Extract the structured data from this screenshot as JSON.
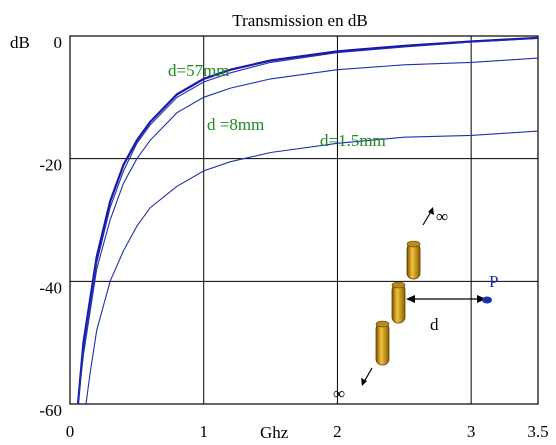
{
  "chart_data": {
    "type": "line",
    "title": "Transmission en dB",
    "ylabel": "dB",
    "xlabel": "Ghz",
    "xlim": [
      0,
      3.5
    ],
    "ylim": [
      -60,
      0
    ],
    "grid": true,
    "x_ticks": [
      {
        "value": 0,
        "label": "0"
      },
      {
        "value": 1,
        "label": "1"
      },
      {
        "value": 2,
        "label": "2"
      },
      {
        "value": 3,
        "label": "3"
      },
      {
        "value": 3.5,
        "label": "3.5"
      }
    ],
    "y_ticks": [
      {
        "value": 0,
        "label": "0"
      },
      {
        "value": -20,
        "label": "-20"
      },
      {
        "value": -40,
        "label": "-40"
      },
      {
        "value": -60,
        "label": "-60"
      }
    ],
    "series": [
      {
        "x": [
          0.06,
          0.1,
          0.2,
          0.3,
          0.4,
          0.5,
          0.6,
          0.8,
          1.0,
          1.2,
          1.5,
          2.0,
          2.5,
          3.0,
          3.5
        ],
        "y": [
          -60,
          -50,
          -36,
          -27,
          -21,
          -17,
          -14,
          -9.5,
          -7,
          -5.5,
          -4,
          -2.5,
          -1.6,
          -0.9,
          -0.3
        ]
      },
      {
        "x": [
          0.06,
          0.1,
          0.2,
          0.3,
          0.4,
          0.5,
          0.6,
          0.8,
          1.0,
          1.2,
          1.5,
          2.0,
          2.5,
          3.0,
          3.5
        ],
        "y": [
          -60,
          -51,
          -37,
          -28,
          -22,
          -17.5,
          -14.5,
          -10,
          -7.5,
          -6,
          -4.3,
          -2.7,
          -1.8,
          -1.0,
          -0.4
        ]
      },
      {
        "x": [
          0.06,
          0.1,
          0.2,
          0.3,
          0.4,
          0.5,
          0.6,
          0.8,
          1.0,
          1.2,
          1.5,
          2.0,
          2.5,
          3.0,
          3.5
        ],
        "y": [
          -60,
          -52,
          -38,
          -30,
          -24,
          -20,
          -17,
          -12.5,
          -10,
          -8.5,
          -7,
          -5.5,
          -4.7,
          -4.3,
          -3.6
        ]
      },
      {
        "x": [
          0.12,
          0.15,
          0.2,
          0.3,
          0.4,
          0.5,
          0.6,
          0.8,
          1.0,
          1.2,
          1.5,
          2.0,
          2.5,
          3.0,
          3.5
        ],
        "y": [
          -60,
          -55,
          -48,
          -40,
          -35,
          -31,
          -28,
          -24.5,
          -22,
          -20.5,
          -19,
          -17.5,
          -16.5,
          -16.2,
          -15.5
        ]
      }
    ],
    "annotations": [
      {
        "text": "d=57mm"
      },
      {
        "text": "d =8mm"
      },
      {
        "text": "d=1.5mm"
      }
    ],
    "inset": {
      "infinity_top": "∞",
      "infinity_bottom": "∞",
      "point_label": "P",
      "distance_label": "d"
    },
    "colors": {
      "curve": "#1f2fb0",
      "curve_bold": "#1818a8",
      "annotation": "#1e8a1e",
      "point": "#1f2fb0",
      "grid": "#000000"
    }
  }
}
